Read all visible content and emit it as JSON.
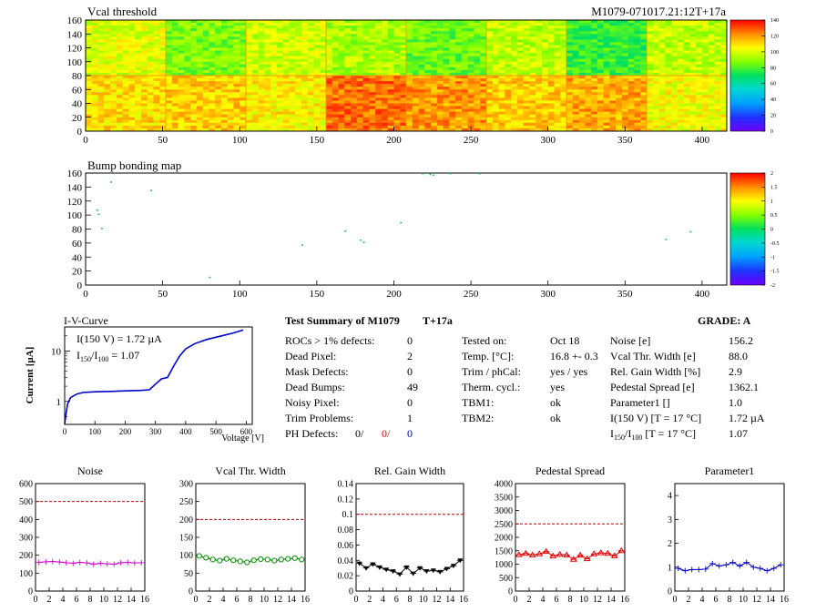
{
  "module_id": "M1079-071017.21:12T+17a",
  "vcal_map": {
    "title": "Vcal threshold",
    "x_ticks": [
      "0",
      "50",
      "100",
      "150",
      "200",
      "250",
      "300",
      "350",
      "400"
    ],
    "y_ticks": [
      "0",
      "20",
      "40",
      "60",
      "80",
      "100",
      "120",
      "140",
      "160"
    ],
    "z_ticks": [
      "0",
      "20",
      "40",
      "60",
      "80",
      "100",
      "120",
      "140"
    ],
    "xlim": [
      0,
      416
    ],
    "ylim": [
      0,
      160
    ],
    "zlim": [
      0,
      140
    ]
  },
  "bump_map": {
    "title": "Bump bonding map",
    "x_ticks": [
      "0",
      "50",
      "100",
      "150",
      "200",
      "250",
      "300",
      "350",
      "400"
    ],
    "y_ticks": [
      "0",
      "20",
      "40",
      "60",
      "80",
      "100",
      "120",
      "140",
      "160"
    ],
    "z_ticks": [
      "2",
      "1.5",
      "1",
      "0.5",
      "0",
      "-0.5",
      "-1",
      "-1.5",
      "-2"
    ],
    "xlim": [
      0,
      416
    ],
    "ylim": [
      0,
      160
    ],
    "zlim": [
      -2,
      2
    ]
  },
  "iv_curve": {
    "title": "I-V-Curve",
    "ylabel": "Current [µA]",
    "xlabel": "Voltage [V]",
    "x_ticks": [
      "0",
      "100",
      "200",
      "300",
      "400",
      "500",
      "600"
    ],
    "y_ticks": [
      "1",
      "10"
    ],
    "annot_i150": "I(150 V) = 1.72 µA",
    "annot_ratio_pre": "I",
    "annot_ratio_sub1": "150",
    "annot_ratio_mid": "/I",
    "annot_ratio_sub2": "100",
    "annot_ratio_post": " =  1.07",
    "log_y": true,
    "xlim": [
      0,
      620
    ],
    "ylim": [
      0.35,
      30
    ]
  },
  "summary": {
    "title": "Test Summary of M1079",
    "tag": "T+17a",
    "grade": "GRADE:  A",
    "col1": [
      {
        "label": "ROCs > 1% defects:",
        "value": "0"
      },
      {
        "label": "Dead Pixel:",
        "value": "2"
      },
      {
        "label": "Mask Defects:",
        "value": "0"
      },
      {
        "label": "Dead Bumps:",
        "value": "49"
      },
      {
        "label": "Noisy Pixel:",
        "value": "0"
      },
      {
        "label": "Trim Problems:",
        "value": "1"
      }
    ],
    "ph_label": "PH Defects:",
    "ph_values": [
      "0/",
      "0/",
      "0"
    ],
    "col2": [
      {
        "label": "Tested on:",
        "value": "Oct 18"
      },
      {
        "label": "Temp. [°C]:",
        "value": "16.8 +- 0.3"
      },
      {
        "label": "Trim / phCal:",
        "value": "yes / yes"
      },
      {
        "label": "Therm. cycl.:",
        "value": "yes"
      },
      {
        "label": "TBM1:",
        "value": "ok"
      },
      {
        "label": "TBM2:",
        "value": "ok"
      }
    ],
    "col3": [
      {
        "label": "Noise [e]",
        "value": "156.2"
      },
      {
        "label": "Vcal Thr. Width [e]",
        "value": "88.0"
      },
      {
        "label": "Rel. Gain Width [%]",
        "value": "2.9"
      },
      {
        "label": "Pedestal Spread [e]",
        "value": "1362.1"
      },
      {
        "label": "Parameter1 []",
        "value": "1.0"
      },
      {
        "label": "I(150 V) [T = 17 °C]",
        "value": "1.72 µA"
      }
    ],
    "col3_last": {
      "pre": "I",
      "sub1": "150",
      "mid": "/I",
      "sub2": "100",
      "post": " [T = 17 °C]",
      "value": "1.07"
    }
  },
  "chart_data": [
    {
      "type": "line",
      "title": "Noise",
      "color": "#d000d0",
      "marker": "plus",
      "x": [
        0,
        1,
        2,
        3,
        4,
        5,
        6,
        7,
        8,
        9,
        10,
        11,
        12,
        13,
        14,
        15
      ],
      "values": [
        160,
        163,
        165,
        162,
        158,
        155,
        160,
        157,
        150,
        155,
        152,
        150,
        158,
        160,
        157,
        158
      ],
      "ylim": [
        0,
        600
      ],
      "y_ticks": [
        "0",
        "100",
        "200",
        "300",
        "400",
        "500",
        "600"
      ],
      "x_ticks": [
        "0",
        "2",
        "4",
        "6",
        "8",
        "10",
        "12",
        "14",
        "16"
      ],
      "limit": 500
    },
    {
      "type": "line",
      "title": "Vcal Thr. Width",
      "color": "#009000",
      "marker": "circle",
      "x": [
        0,
        1,
        2,
        3,
        4,
        5,
        6,
        7,
        8,
        9,
        10,
        11,
        12,
        13,
        14,
        15
      ],
      "values": [
        98,
        93,
        88,
        85,
        90,
        86,
        83,
        80,
        86,
        89,
        88,
        85,
        88,
        90,
        92,
        88
      ],
      "ylim": [
        0,
        300
      ],
      "y_ticks": [
        "0",
        "50",
        "100",
        "150",
        "200",
        "250",
        "300"
      ],
      "x_ticks": [
        "0",
        "2",
        "4",
        "6",
        "8",
        "10",
        "12",
        "14",
        "16"
      ],
      "limit": 200
    },
    {
      "type": "line",
      "title": "Rel. Gain Width",
      "color": "#000000",
      "marker": "triangle-down",
      "x": [
        0,
        1,
        2,
        3,
        4,
        5,
        6,
        7,
        8,
        9,
        10,
        11,
        12,
        13,
        14,
        15
      ],
      "values": [
        0.036,
        0.03,
        0.035,
        0.031,
        0.028,
        0.026,
        0.022,
        0.031,
        0.023,
        0.03,
        0.026,
        0.027,
        0.025,
        0.029,
        0.033,
        0.04
      ],
      "ylim": [
        0,
        0.14
      ],
      "y_ticks": [
        "0",
        "0.02",
        "0.04",
        "0.06",
        "0.08",
        "0.1",
        "0.12",
        "0.14"
      ],
      "x_ticks": [
        "0",
        "2",
        "4",
        "6",
        "8",
        "10",
        "12",
        "14",
        "16"
      ],
      "limit": 0.1
    },
    {
      "type": "line",
      "title": "Pedestal Spread",
      "color": "#e00000",
      "marker": "triangle-up",
      "x": [
        0,
        1,
        2,
        3,
        4,
        5,
        6,
        7,
        8,
        9,
        10,
        11,
        12,
        13,
        14,
        15
      ],
      "values": [
        1350,
        1400,
        1340,
        1380,
        1470,
        1300,
        1360,
        1340,
        1180,
        1330,
        1200,
        1380,
        1420,
        1400,
        1310,
        1500
      ],
      "ylim": [
        0,
        4000
      ],
      "y_ticks": [
        "0",
        "500",
        "1000",
        "1500",
        "2000",
        "2500",
        "3000",
        "3500",
        "4000"
      ],
      "x_ticks": [
        "0",
        "2",
        "4",
        "6",
        "8",
        "10",
        "12",
        "14",
        "16"
      ],
      "limit": 2500
    },
    {
      "type": "line",
      "title": "Parameter1",
      "color": "#0000c0",
      "marker": "plus",
      "x": [
        0,
        1,
        2,
        3,
        4,
        5,
        6,
        7,
        8,
        9,
        10,
        11,
        12,
        13,
        14,
        15
      ],
      "values": [
        0.95,
        0.85,
        0.9,
        0.9,
        0.92,
        1.15,
        1.05,
        1.1,
        1.2,
        1.05,
        1.2,
        1.0,
        0.95,
        0.85,
        0.95,
        1.1
      ],
      "ylim": [
        0,
        4.5
      ],
      "y_ticks": [
        "0",
        "1",
        "2",
        "3",
        "4"
      ],
      "x_ticks": [
        "0",
        "2",
        "4",
        "6",
        "8",
        "10",
        "12",
        "14",
        "16"
      ]
    }
  ]
}
